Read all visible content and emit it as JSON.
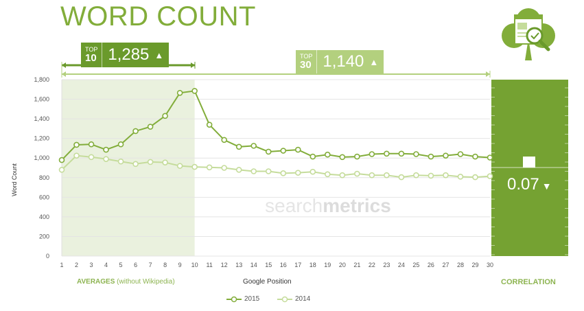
{
  "title": "WORD COUNT",
  "badges": {
    "top10": {
      "top_label": "TOP",
      "rank": "10",
      "value": "1,285",
      "arrow": "▲"
    },
    "top30": {
      "top_label": "TOP",
      "rank": "30",
      "value": "1,140",
      "arrow": "▲"
    }
  },
  "labels": {
    "averages": "AVERAGES",
    "averages_note": "(without Wikipedia)",
    "xlabel": "Google Position",
    "ylabel": "Word Count",
    "correlation": "CORRELATION"
  },
  "correlation": {
    "value": "0.07",
    "arrow": "▼"
  },
  "watermark": {
    "part1": "search",
    "part2": "metrics"
  },
  "colors": {
    "s2015": "#82ad3a",
    "s2014": "#c5dc9b",
    "title": "#82ad3a",
    "shade": "#eaf1de",
    "corr_panel": "#75a232",
    "badge_top10": "#6a9a2b",
    "badge_top30": "#b3d07e"
  },
  "icons": {
    "logo": "clover-document-magnifier-icon"
  },
  "chart_data": {
    "type": "line",
    "x": [
      1,
      2,
      3,
      4,
      5,
      6,
      7,
      8,
      9,
      10,
      11,
      12,
      13,
      14,
      15,
      16,
      17,
      18,
      19,
      20,
      21,
      22,
      23,
      24,
      25,
      26,
      27,
      28,
      29,
      30
    ],
    "ylim": [
      0,
      1800
    ],
    "yticks": [
      0,
      200,
      400,
      600,
      800,
      1000,
      1200,
      1400,
      1600,
      1800
    ],
    "ytick_labels": [
      "0",
      "200",
      "400",
      "600",
      "800",
      "1,000",
      "1,200",
      "1,400",
      "1,600",
      "1,800"
    ],
    "shaded_range": [
      1,
      10
    ],
    "grid": true,
    "legend_position": "bottom",
    "xlabel": "Google Position",
    "ylabel": "Word Count",
    "series": [
      {
        "name": "2015",
        "values": [
          980,
          1135,
          1140,
          1085,
          1140,
          1275,
          1320,
          1430,
          1665,
          1685,
          1340,
          1185,
          1115,
          1125,
          1065,
          1075,
          1085,
          1015,
          1035,
          1010,
          1015,
          1040,
          1045,
          1045,
          1040,
          1015,
          1025,
          1040,
          1015,
          1005
        ]
      },
      {
        "name": "2014",
        "values": [
          880,
          1025,
          1010,
          990,
          965,
          940,
          960,
          955,
          920,
          910,
          905,
          900,
          880,
          865,
          865,
          845,
          850,
          860,
          835,
          825,
          840,
          825,
          825,
          805,
          825,
          820,
          825,
          810,
          805,
          815
        ]
      }
    ]
  }
}
